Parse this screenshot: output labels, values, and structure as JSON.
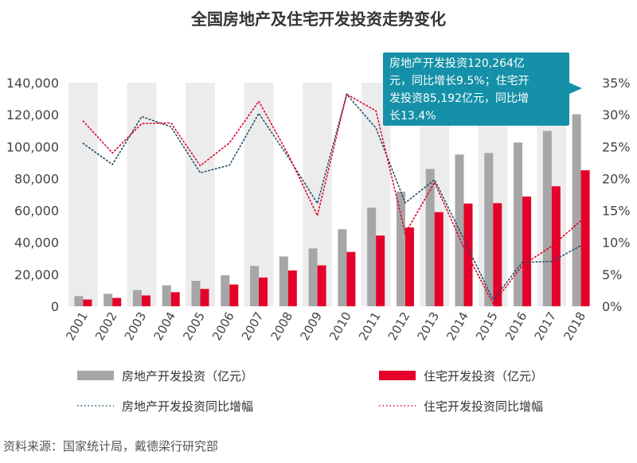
{
  "chart_data": {
    "type": "bar",
    "title": "全国房地产及住宅开发投资走势变化",
    "categories": [
      "2001",
      "2002",
      "2003",
      "2004",
      "2005",
      "2006",
      "2007",
      "2008",
      "2009",
      "2010",
      "2011",
      "2012",
      "2013",
      "2014",
      "2015",
      "2016",
      "2017",
      "2018"
    ],
    "series": [
      {
        "name": "房地产开发投资（亿元）",
        "kind": "bar",
        "axis": "left",
        "color": "#a6a6a6",
        "values": [
          6344,
          7791,
          10154,
          13158,
          15909,
          19423,
          25289,
          31203,
          36242,
          48259,
          61797,
          71804,
          86013,
          95036,
          95979,
          102581,
          109799,
          120264
        ]
      },
      {
        "name": "住宅开发投资（亿元）",
        "kind": "bar",
        "axis": "left",
        "color": "#e4002b",
        "values": [
          4217,
          5228,
          6777,
          8837,
          10861,
          13638,
          18005,
          22441,
          25614,
          34038,
          44308,
          49374,
          58951,
          64352,
          64595,
          68704,
          75148,
          85192
        ]
      },
      {
        "name": "房地产开发投资同比增幅",
        "kind": "line",
        "axis": "right",
        "color": "#1f4e6b",
        "values": [
          25.5,
          22.2,
          29.7,
          28.1,
          20.9,
          22.1,
          30.2,
          23.4,
          16.1,
          33.2,
          27.9,
          16.2,
          19.8,
          10.5,
          1.0,
          6.9,
          7.0,
          9.5
        ]
      },
      {
        "name": "住宅开发投资同比增幅",
        "kind": "line",
        "axis": "right",
        "color": "#e4002b",
        "values": [
          29.0,
          24.0,
          28.6,
          28.7,
          22.0,
          25.6,
          32.1,
          23.8,
          14.2,
          33.2,
          30.6,
          11.4,
          19.4,
          9.2,
          0.4,
          6.4,
          9.4,
          13.4
        ]
      }
    ],
    "y_left": {
      "min": 0,
      "max": 140000,
      "ticks": [
        "0",
        "20,000",
        "40,000",
        "60,000",
        "80,000",
        "100,000",
        "120,000",
        "140,000"
      ]
    },
    "y_right": {
      "min": 0,
      "max": 35,
      "ticks": [
        "0%",
        "5%",
        "10%",
        "15%",
        "20%",
        "25%",
        "30%",
        "35%"
      ]
    },
    "annotation": {
      "lines": [
        "房地产开发投资120,264亿",
        "元，同比增长9.5%；住宅开",
        "发投资85,192亿元，同比增",
        "长13.4%"
      ],
      "color": "#1590a8"
    },
    "column_shading": "#ececec",
    "legend": [
      {
        "label": "房地产开发投资（亿元）",
        "kind": "bar",
        "color": "#a6a6a6"
      },
      {
        "label": "住宅开发投资（亿元）",
        "kind": "bar",
        "color": "#e4002b"
      },
      {
        "label": "房地产开发投资同比增幅",
        "kind": "line",
        "color": "#1f4e6b"
      },
      {
        "label": "住宅开发投资同比增幅",
        "kind": "line",
        "color": "#e4002b"
      }
    ]
  },
  "source": "资料来源：国家统计局，戴德梁行研究部"
}
